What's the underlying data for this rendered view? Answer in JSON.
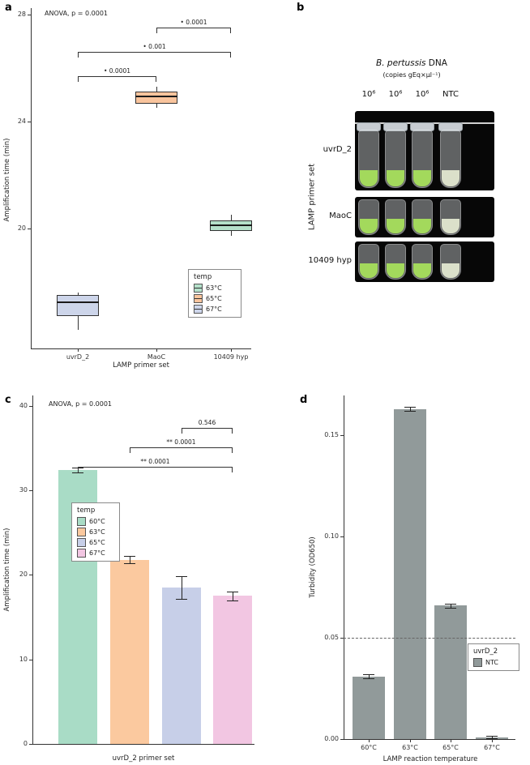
{
  "panels": {
    "a": {
      "label": "a",
      "anova": "ANOVA, p = 0.0001",
      "ylabel": "Amplification time (min)",
      "xlabel": "LAMP primer set"
    },
    "b": {
      "label": "b",
      "title_italic": "B. pertussis",
      "title_rest": " DNA",
      "subtitle": "(copies gEq×µl⁻¹)",
      "column_labels": [
        "10⁶",
        "10⁶",
        "10⁶",
        "NTC"
      ],
      "row_axis_label": "LAMP primer set",
      "positive_color": "#a3d95c",
      "negative_color": "#dbe0ca",
      "rows": [
        {
          "label": "uvrD_2",
          "tubes": [
            "positive",
            "positive",
            "positive",
            "negative"
          ]
        },
        {
          "label": "MaoC",
          "tubes": [
            "positive",
            "positive",
            "positive",
            "negative"
          ]
        },
        {
          "label": "10409 hyp",
          "tubes": [
            "positive",
            "positive",
            "positive",
            "negative"
          ]
        }
      ]
    },
    "c": {
      "label": "c",
      "anova": "ANOVA, p = 0.0001",
      "ylabel": "Amplification time (min)",
      "xlabel": "uvrD_2 primer set"
    },
    "d": {
      "label": "d",
      "ylabel": "Turbidity (OD650)",
      "xlabel": "LAMP reaction temperature"
    }
  },
  "chart_data": [
    {
      "panel": "a",
      "type": "boxplot",
      "title": "",
      "anova": "ANOVA, p = 0.0001",
      "xlabel": "LAMP primer set",
      "ylabel": "Amplification time (min)",
      "ylim": [
        15.5,
        28.3
      ],
      "yticks": [
        28,
        24,
        20
      ],
      "categories": [
        "uvrD_2",
        "MaoC",
        "10409 hyp"
      ],
      "boxes": [
        {
          "category": "uvrD_2",
          "temp": "67°C",
          "color": "#cdd5ea",
          "whisker_low": 16.2,
          "q1": 16.7,
          "median": 17.25,
          "q3": 17.5,
          "whisker_high": 17.6
        },
        {
          "category": "MaoC",
          "temp": "65°C",
          "color": "#f9c49d",
          "whisker_low": 24.5,
          "q1": 24.65,
          "median": 24.95,
          "q3": 25.1,
          "whisker_high": 25.3
        },
        {
          "category": "10409 hyp",
          "temp": "63°C",
          "color": "#b4e0ca",
          "whisker_low": 19.7,
          "q1": 19.9,
          "median": 20.15,
          "q3": 20.3,
          "whisker_high": 20.5
        }
      ],
      "comparisons": [
        {
          "from": "MaoC",
          "to": "10409 hyp",
          "label": "• 0.0001"
        },
        {
          "from": "uvrD_2",
          "to": "10409 hyp",
          "label": "• 0.001"
        },
        {
          "from": "uvrD_2",
          "to": "MaoC",
          "label": "• 0.0001"
        }
      ],
      "legend": {
        "title": "temp",
        "position": "bottom-right",
        "items": [
          {
            "label": "63°C",
            "color": "#b4e0ca"
          },
          {
            "label": "65°C",
            "color": "#f9c49d"
          },
          {
            "label": "67°C",
            "color": "#cdd5ea"
          }
        ]
      }
    },
    {
      "panel": "c",
      "type": "bar",
      "title": "",
      "anova": "ANOVA, p = 0.0001",
      "xlabel": "uvrD_2 primer set",
      "ylabel": "Amplification time (min)",
      "ylim": [
        0,
        41
      ],
      "yticks": [
        0,
        10,
        20,
        30,
        40
      ],
      "categories": [
        "60°C",
        "63°C",
        "65°C",
        "67°C"
      ],
      "values": [
        32.4,
        21.8,
        18.5,
        17.5
      ],
      "errors": [
        0.3,
        0.4,
        1.3,
        0.5
      ],
      "colors": [
        "#a9dcc6",
        "#fbc99f",
        "#c7cfe8",
        "#f2c6e2"
      ],
      "comparisons": [
        {
          "from": "65°C",
          "to": "67°C",
          "label": "0.546"
        },
        {
          "from": "63°C",
          "to": "67°C",
          "label": "** 0.0001"
        },
        {
          "from": "60°C",
          "to": "67°C",
          "label": "** 0.0001"
        }
      ],
      "legend": {
        "title": "temp",
        "position": "middle-left",
        "items": [
          {
            "label": "60°C",
            "color": "#a9dcc6"
          },
          {
            "label": "63°C",
            "color": "#fbc99f"
          },
          {
            "label": "65°C",
            "color": "#c7cfe8"
          },
          {
            "label": "67°C",
            "color": "#f2c6e2"
          }
        ]
      }
    },
    {
      "panel": "d",
      "type": "bar",
      "title": "",
      "xlabel": "LAMP reaction temperature",
      "ylabel": "Turbidity (OD650)",
      "ylim": [
        0,
        0.17
      ],
      "yticks": [
        0,
        0.05,
        0.1,
        0.15
      ],
      "ytick_labels": [
        "0.00",
        "0.05",
        "0.10",
        "0.15"
      ],
      "categories": [
        "60°C",
        "63°C",
        "65°C",
        "67°C"
      ],
      "values": [
        0.031,
        0.163,
        0.066,
        0.001
      ],
      "errors": [
        0.001,
        0.001,
        0.001,
        0.0005
      ],
      "bar_color": "#919a9a",
      "threshold_line": 0.05,
      "legend": {
        "title": "uvrD_2",
        "position": "middle-right",
        "items": [
          {
            "label": "NTC",
            "color": "#919a9a"
          }
        ]
      }
    }
  ]
}
